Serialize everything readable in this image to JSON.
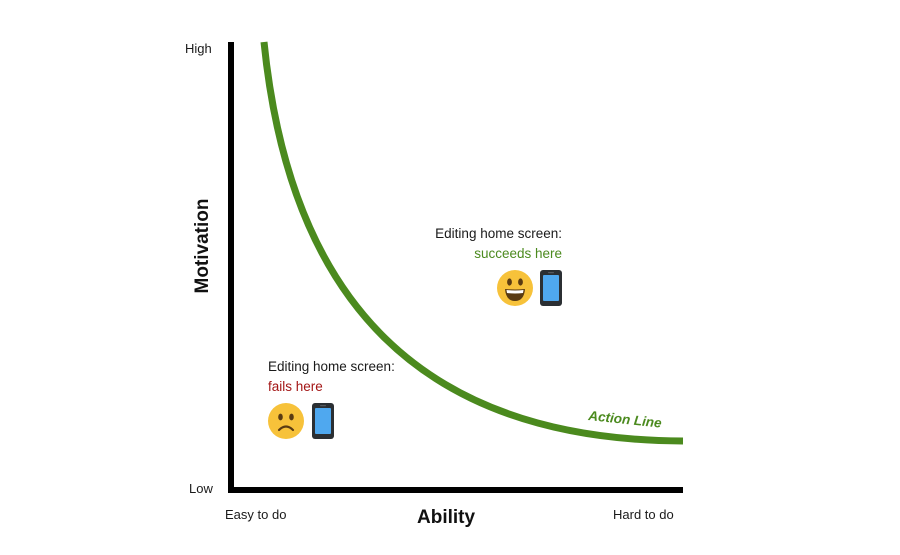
{
  "chart_data": {
    "type": "line",
    "axes": {
      "y_label": "Motivation",
      "x_label": "Ability",
      "y_high": "High",
      "y_low": "Low",
      "x_left": "Easy to do",
      "x_right": "Hard to do"
    },
    "curve": {
      "label": "Action Line",
      "color": "#4b8a1e"
    },
    "annotations": {
      "success": {
        "line1": "Editing home screen:",
        "line2": "succeeds here",
        "line2_color": "#4b8a1e",
        "face": "grinning-face-icon"
      },
      "failure": {
        "line1": "Editing home screen:",
        "line2": "fails here",
        "line2_color": "#a31515",
        "face": "frowning-face-icon"
      }
    },
    "colors": {
      "axis": "#000000",
      "emoji_yellow": "#f7c23a",
      "phone_body": "#2b2f33",
      "phone_screen": "#4fa8ef"
    }
  }
}
